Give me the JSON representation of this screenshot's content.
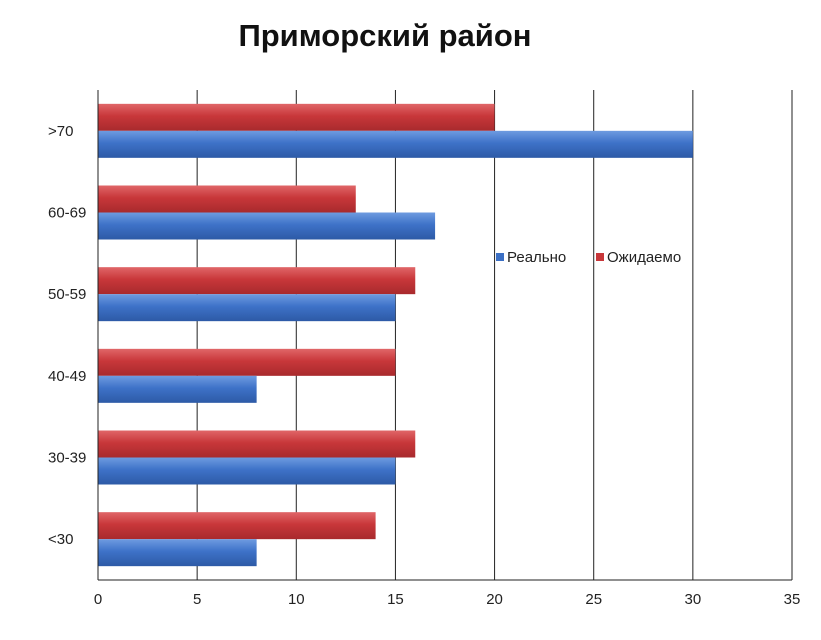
{
  "chart_data": {
    "type": "bar",
    "orientation": "horizontal",
    "title": "Приморский район",
    "xlabel": "",
    "ylabel": "",
    "categories": [
      ">70",
      "60-69",
      "50-59",
      "40-49",
      "30-39",
      "<30"
    ],
    "series": [
      {
        "name": "Реально",
        "values": [
          30,
          17,
          15,
          8,
          15,
          8
        ],
        "color": "#3B6FC4"
      },
      {
        "name": "Ожидаемо",
        "values": [
          20,
          13,
          16,
          15,
          16,
          14
        ],
        "color": "#C8373A"
      }
    ],
    "xlim": [
      0,
      35
    ],
    "xticks": [
      0,
      5,
      10,
      15,
      20,
      25,
      30,
      35
    ],
    "grid": "vertical",
    "legend_position": "right"
  }
}
